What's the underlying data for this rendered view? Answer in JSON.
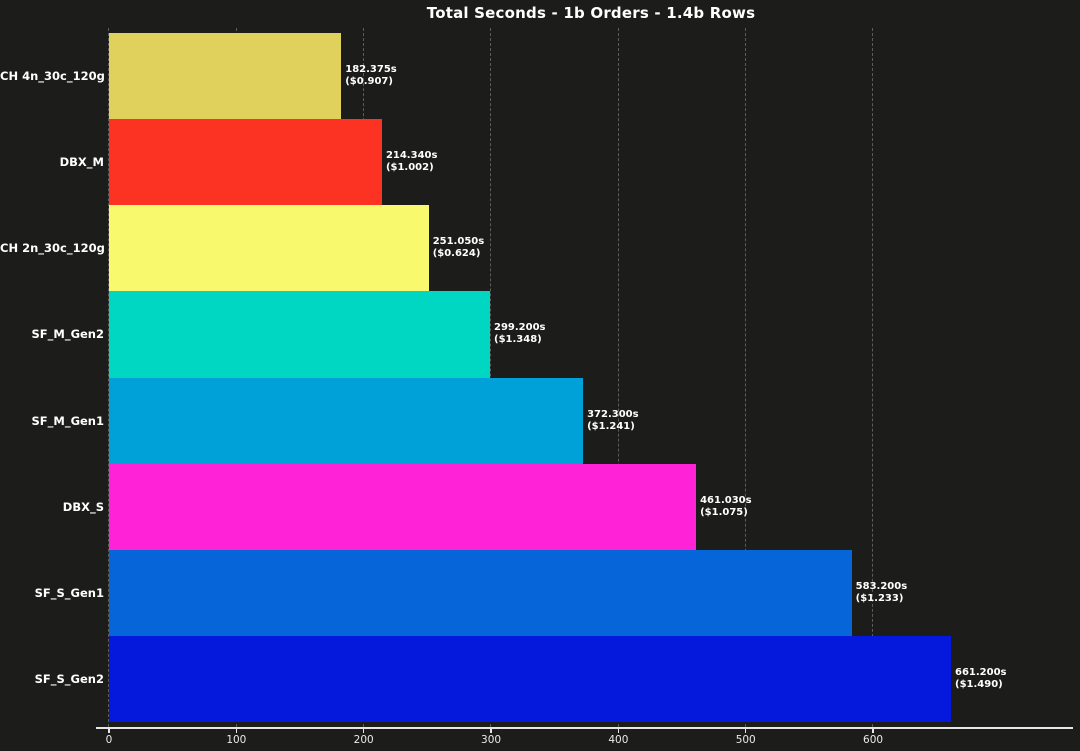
{
  "title": "Total Seconds - 1b Orders - 1.4b Rows",
  "colors": {
    "background": "#1c1c1a",
    "text": "#ffffff",
    "grid": "#5c5c5a",
    "axis": "#e6e6e6",
    "tick_label": "#eaeaea"
  },
  "chart_data": {
    "type": "bar",
    "orientation": "horizontal",
    "title": "Total Seconds - 1b Orders - 1.4b Rows",
    "xlabel": "",
    "ylabel": "",
    "xlim": [
      0,
      757
    ],
    "x_ticks": [
      0,
      100,
      200,
      300,
      400,
      500,
      600
    ],
    "grid": {
      "axis": "x",
      "style": "dashed"
    },
    "legend": "none",
    "categories": [
      "CH 4n_30c_120g",
      "DBX_M",
      "CH 2n_30c_120g",
      "SF_M_Gen2",
      "SF_M_Gen1",
      "DBX_S",
      "SF_S_Gen1",
      "SF_S_Gen2"
    ],
    "series": [
      {
        "name": "total_seconds",
        "values": [
          182.375,
          214.34,
          251.05,
          299.2,
          372.3,
          461.03,
          583.2,
          661.2
        ]
      },
      {
        "name": "cost_usd",
        "values": [
          0.907,
          1.002,
          0.624,
          1.348,
          1.241,
          1.075,
          1.233,
          1.49
        ]
      }
    ],
    "bar_labels": [
      [
        "182.375s",
        "($0.907)"
      ],
      [
        "214.340s",
        "($1.002)"
      ],
      [
        "251.050s",
        "($0.624)"
      ],
      [
        "299.200s",
        "($1.348)"
      ],
      [
        "372.300s",
        "($1.241)"
      ],
      [
        "461.030s",
        "($1.075)"
      ],
      [
        "583.200s",
        "($1.233)"
      ],
      [
        "661.200s",
        "($1.490)"
      ]
    ],
    "bar_colors": [
      "#e0d05c",
      "#fc3222",
      "#f9f96e",
      "#00d7c2",
      "#00a0d8",
      "#ff22d6",
      "#0565d9",
      "#0419dc"
    ]
  }
}
